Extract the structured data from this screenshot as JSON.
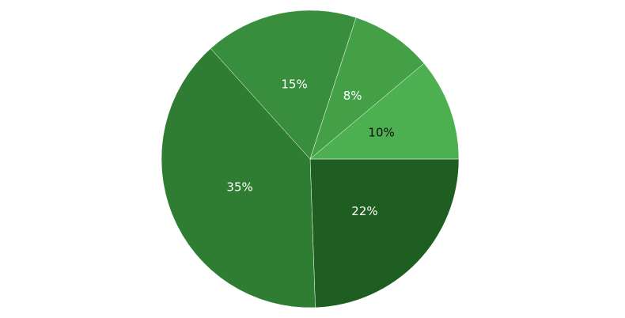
{
  "chart_data": {
    "type": "pie",
    "values": [
      22,
      35,
      15,
      8,
      10
    ],
    "value_labels": [
      "22%",
      "35%",
      "15%",
      "8%",
      "10%"
    ],
    "colors": [
      "#1e5e20",
      "#2e7d32",
      "#388e3c",
      "#43a047",
      "#4caf50"
    ],
    "label_colors": [
      "#ffffff",
      "#ffffff",
      "#ffffff",
      "#ffffff",
      "#111111"
    ],
    "start_angle": 0,
    "direction": "clockwise"
  }
}
